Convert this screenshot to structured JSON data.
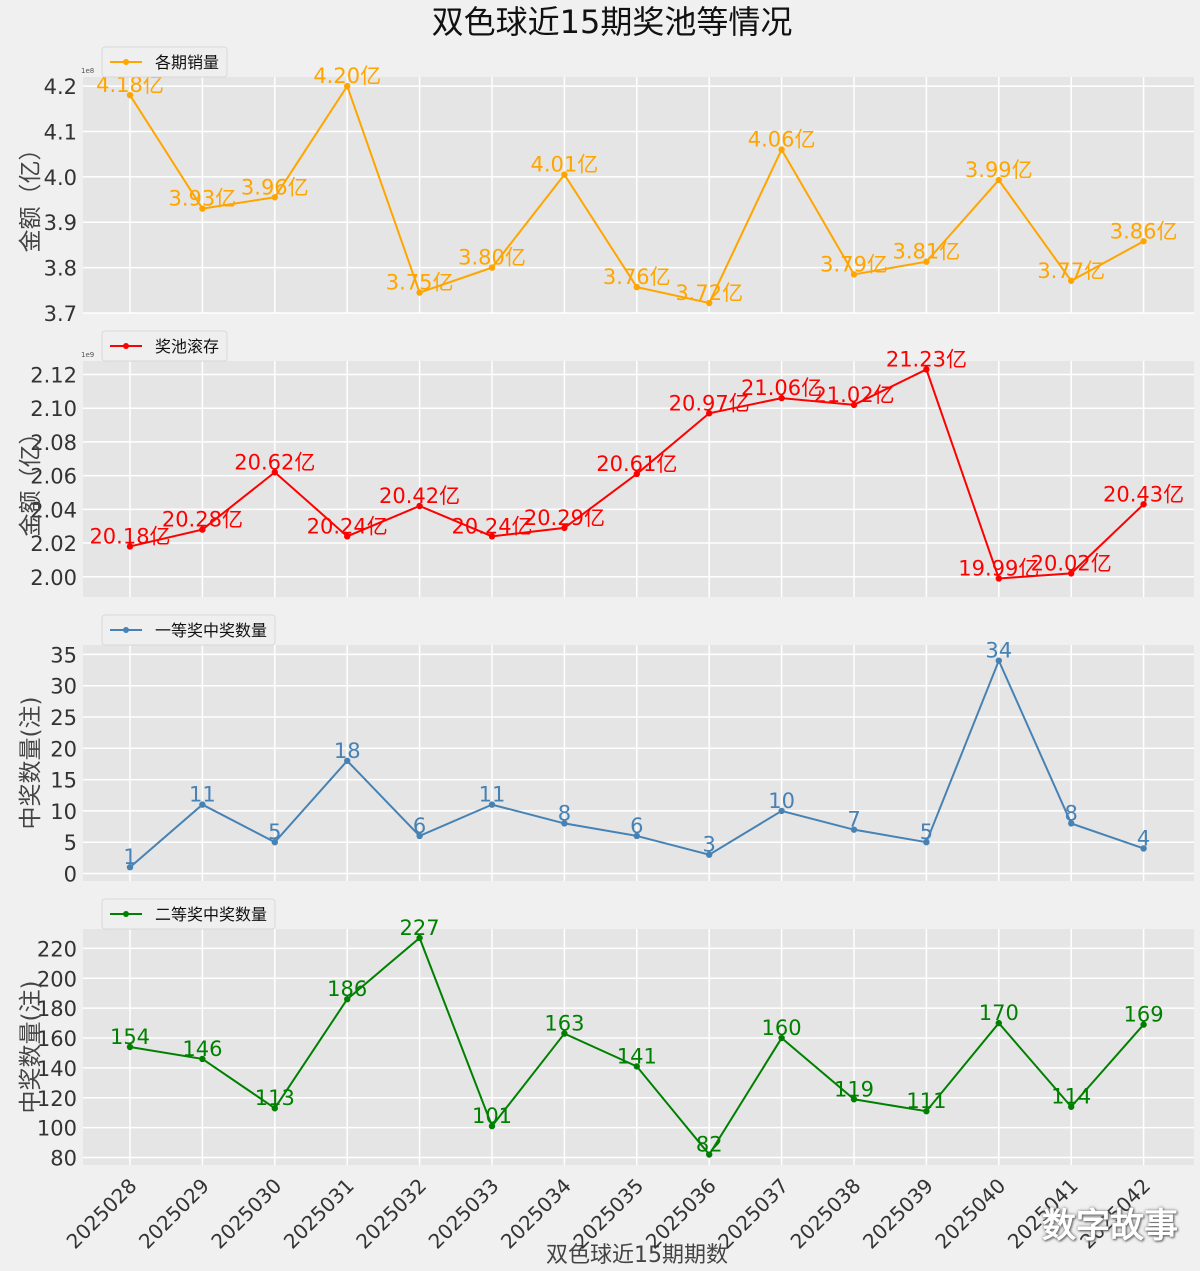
{
  "title": "双色球近15期奖池等情况",
  "xlabel": "双色球近15期期数",
  "watermark": "数字故事",
  "chart_data": [
    {
      "type": "line",
      "legend": "各期销量",
      "ylabel": "金额（亿）",
      "offset_label": "1e8",
      "color": "#ffa500",
      "ylim": [
        3.7,
        4.22
      ],
      "yticks": [
        3.7,
        3.8,
        3.9,
        4.0,
        4.1,
        4.2
      ],
      "ytick_labels": [
        "3.7",
        "3.8",
        "3.9",
        "4.0",
        "4.1",
        "4.2"
      ],
      "x": [
        "2025028",
        "2025029",
        "2025030",
        "2025031",
        "2025032",
        "2025033",
        "2025034",
        "2025035",
        "2025036",
        "2025037",
        "2025038",
        "2025039",
        "2025040",
        "2025041",
        "2025042"
      ],
      "values": [
        4.18,
        3.93,
        3.955,
        4.2,
        3.745,
        3.8,
        4.005,
        3.757,
        3.722,
        4.06,
        3.785,
        3.813,
        3.993,
        3.771,
        3.858
      ],
      "labels": [
        "4.18亿",
        "3.93亿",
        "3.96亿",
        "4.20亿",
        "3.75亿",
        "3.80亿",
        "4.01亿",
        "3.76亿",
        "3.72亿",
        "4.06亿",
        "3.79亿",
        "3.81亿",
        "3.99亿",
        "3.77亿",
        "3.86亿"
      ]
    },
    {
      "type": "line",
      "legend": "奖池滚存",
      "ylabel": "金额（亿）",
      "offset_label": "1e9",
      "color": "#ff0000",
      "ylim": [
        1.988,
        2.128
      ],
      "yticks": [
        2.0,
        2.02,
        2.04,
        2.06,
        2.08,
        2.1,
        2.12
      ],
      "ytick_labels": [
        "2.00",
        "2.02",
        "2.04",
        "2.06",
        "2.08",
        "2.10",
        "2.12"
      ],
      "x": [
        "2025028",
        "2025029",
        "2025030",
        "2025031",
        "2025032",
        "2025033",
        "2025034",
        "2025035",
        "2025036",
        "2025037",
        "2025038",
        "2025039",
        "2025040",
        "2025041",
        "2025042"
      ],
      "values": [
        2.018,
        2.028,
        2.062,
        2.024,
        2.042,
        2.024,
        2.029,
        2.061,
        2.097,
        2.106,
        2.102,
        2.123,
        1.999,
        2.002,
        2.043
      ],
      "labels": [
        "20.18亿",
        "20.28亿",
        "20.62亿",
        "20.24亿",
        "20.42亿",
        "20.24亿",
        "20.29亿",
        "20.61亿",
        "20.97亿",
        "21.06亿",
        "21.02亿",
        "21.23亿",
        "19.99亿",
        "20.02亿",
        "20.43亿"
      ]
    },
    {
      "type": "line",
      "legend": "一等奖中奖数量",
      "ylabel": "中奖数量(注)",
      "color": "#4682b4",
      "ylim": [
        -1.2,
        36.5
      ],
      "yticks": [
        0,
        5,
        10,
        15,
        20,
        25,
        30,
        35
      ],
      "ytick_labels": [
        "0",
        "5",
        "10",
        "15",
        "20",
        "25",
        "30",
        "35"
      ],
      "x": [
        "2025028",
        "2025029",
        "2025030",
        "2025031",
        "2025032",
        "2025033",
        "2025034",
        "2025035",
        "2025036",
        "2025037",
        "2025038",
        "2025039",
        "2025040",
        "2025041",
        "2025042"
      ],
      "values": [
        1,
        11,
        5,
        18,
        6,
        11,
        8,
        6,
        3,
        10,
        7,
        5,
        34,
        8,
        4
      ],
      "labels": [
        "1",
        "11",
        "5",
        "18",
        "6",
        "11",
        "8",
        "6",
        "3",
        "10",
        "7",
        "5",
        "34",
        "8",
        "4"
      ]
    },
    {
      "type": "line",
      "legend": "二等奖中奖数量",
      "ylabel": "中奖数量(注)",
      "color": "#008000",
      "ylim": [
        75,
        233
      ],
      "yticks": [
        80,
        100,
        120,
        140,
        160,
        180,
        200,
        220
      ],
      "ytick_labels": [
        "80",
        "100",
        "120",
        "140",
        "160",
        "180",
        "200",
        "220"
      ],
      "x": [
        "2025028",
        "2025029",
        "2025030",
        "2025031",
        "2025032",
        "2025033",
        "2025034",
        "2025035",
        "2025036",
        "2025037",
        "2025038",
        "2025039",
        "2025040",
        "2025041",
        "2025042"
      ],
      "values": [
        154,
        146,
        113,
        186,
        227,
        101,
        163,
        141,
        82,
        160,
        119,
        111,
        170,
        114,
        169
      ],
      "labels": [
        "154",
        "146",
        "113",
        "186",
        "227",
        "101",
        "163",
        "141",
        "82",
        "160",
        "119",
        "111",
        "170",
        "114",
        "169"
      ]
    }
  ]
}
